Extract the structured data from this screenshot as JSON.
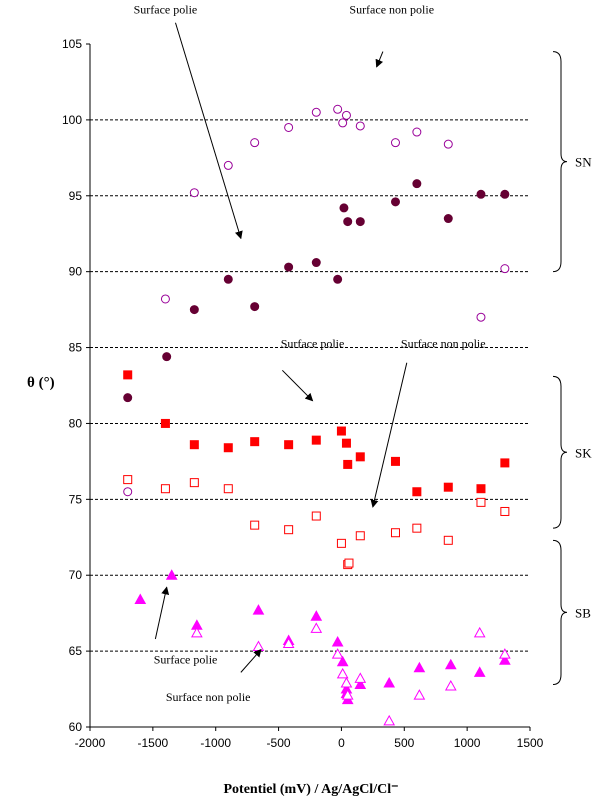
{
  "chart_data": {
    "type": "scatter",
    "xlabel": "Potentiel (mV) / Ag/AgCl/Cl⁻",
    "ylabel": "θ (°)",
    "xlim": [
      -2000,
      1500
    ],
    "ylim": [
      60,
      105
    ],
    "x_ticks": [
      "-2000",
      "-1500",
      "-1000",
      "-500",
      "0",
      "500",
      "1000",
      "1500"
    ],
    "y_ticks": [
      "60",
      "65",
      "70",
      "75",
      "80",
      "85",
      "90",
      "95",
      "100",
      "105"
    ],
    "grid": "horizontal dashed",
    "series": [
      {
        "color": "#990099",
        "marker": "circle-open",
        "points": [
          [
            -1700,
            75.5
          ],
          [
            -1400,
            88.2
          ],
          [
            -1170,
            95.2
          ],
          [
            -900,
            97
          ],
          [
            -690,
            98.5
          ],
          [
            -420,
            99.5
          ],
          [
            -200,
            100.5
          ],
          [
            -30,
            100.7
          ],
          [
            10,
            99.8
          ],
          [
            40,
            100.3
          ],
          [
            150,
            99.6
          ],
          [
            430,
            98.5
          ],
          [
            600,
            99.2
          ],
          [
            850,
            98.4
          ],
          [
            1110,
            87
          ],
          [
            1300,
            90.2
          ]
        ]
      },
      {
        "color": "#660033",
        "marker": "circle-filled",
        "points": [
          [
            -1700,
            81.7
          ],
          [
            -1390,
            84.4
          ],
          [
            -1170,
            87.5
          ],
          [
            -900,
            89.5
          ],
          [
            -690,
            87.7
          ],
          [
            -420,
            90.3
          ],
          [
            -200,
            90.6
          ],
          [
            -30,
            89.5
          ],
          [
            20,
            94.2
          ],
          [
            50,
            93.3
          ],
          [
            150,
            93.3
          ],
          [
            430,
            94.6
          ],
          [
            600,
            95.8
          ],
          [
            850,
            93.5
          ],
          [
            1110,
            95.1
          ],
          [
            1300,
            95.1
          ]
        ]
      },
      {
        "color": "#ff0000",
        "marker": "square-filled",
        "points": [
          [
            -1700,
            83.2
          ],
          [
            -1400,
            80
          ],
          [
            -1170,
            78.6
          ],
          [
            -900,
            78.4
          ],
          [
            -690,
            78.8
          ],
          [
            -420,
            78.6
          ],
          [
            -200,
            78.9
          ],
          [
            0,
            79.5
          ],
          [
            40,
            78.7
          ],
          [
            50,
            77.3
          ],
          [
            150,
            77.8
          ],
          [
            430,
            77.5
          ],
          [
            600,
            75.5
          ],
          [
            850,
            75.8
          ],
          [
            1110,
            75.7
          ],
          [
            1300,
            77.4
          ]
        ]
      },
      {
        "color": "#ff0000",
        "marker": "square-open",
        "points": [
          [
            -1700,
            76.3
          ],
          [
            -1400,
            75.7
          ],
          [
            -1170,
            76.1
          ],
          [
            -900,
            75.7
          ],
          [
            -690,
            73.3
          ],
          [
            -420,
            73
          ],
          [
            -200,
            73.9
          ],
          [
            0,
            72.1
          ],
          [
            50,
            70.7
          ],
          [
            60,
            70.8
          ],
          [
            150,
            72.6
          ],
          [
            430,
            72.8
          ],
          [
            600,
            73.1
          ],
          [
            850,
            72.3
          ],
          [
            1110,
            74.8
          ],
          [
            1300,
            74.2
          ]
        ]
      },
      {
        "color": "#ff00ff",
        "marker": "triangle-filled",
        "points": [
          [
            -1600,
            68.4
          ],
          [
            -1350,
            70
          ],
          [
            -1150,
            66.7
          ],
          [
            -660,
            67.7
          ],
          [
            -420,
            65.7
          ],
          [
            -200,
            67.3
          ],
          [
            -30,
            65.6
          ],
          [
            10,
            64.3
          ],
          [
            40,
            62.5
          ],
          [
            40,
            62.2
          ],
          [
            50,
            61.8
          ],
          [
            150,
            62.8
          ],
          [
            380,
            62.9
          ],
          [
            620,
            63.9
          ],
          [
            870,
            64.1
          ],
          [
            1100,
            63.6
          ],
          [
            1300,
            64.4
          ]
        ]
      },
      {
        "color": "#ff00ff",
        "marker": "triangle-open",
        "points": [
          [
            -1150,
            66.2
          ],
          [
            -660,
            65.3
          ],
          [
            -420,
            65.5
          ],
          [
            -200,
            66.5
          ],
          [
            -30,
            64.8
          ],
          [
            10,
            63.5
          ],
          [
            40,
            62.9
          ],
          [
            50,
            62.1
          ],
          [
            150,
            63.2
          ],
          [
            380,
            60.4
          ],
          [
            620,
            62.1
          ],
          [
            870,
            62.7
          ],
          [
            1100,
            66.2
          ],
          [
            1300,
            64.8
          ]
        ]
      }
    ],
    "annotations": [
      {
        "text": "Surface polie",
        "tx": -1400,
        "ty": 107,
        "ax": -1320,
        "ay": 106.4,
        "hx": -800,
        "hy": 92.2
      },
      {
        "text": "Surface non polie",
        "tx": 400,
        "ty": 107,
        "ax": 330,
        "ay": 104.5,
        "hx": 280,
        "hy": 103.5
      },
      {
        "text": "Surface polie",
        "tx": -230,
        "ty": 85,
        "ax": -470,
        "ay": 83.5,
        "hx": -230,
        "hy": 81.5
      },
      {
        "text": "Surface non polie",
        "tx": 810,
        "ty": 85,
        "ax": 520,
        "ay": 84,
        "hx": 250,
        "hy": 74.5
      },
      {
        "text": "Surface polie",
        "tx": -1240,
        "ty": 64.2,
        "ax": -1480,
        "ay": 65.8,
        "hx": -1390,
        "hy": 69.2
      },
      {
        "text": "Surface non polie",
        "tx": -1060,
        "ty": 61.7,
        "ax": -800,
        "ay": 63.6,
        "hx": -640,
        "hy": 65.1
      }
    ],
    "groups": [
      {
        "label": "SN",
        "y1": 104.5,
        "y2": 90
      },
      {
        "label": "SK",
        "y1": 83.1,
        "y2": 73.1
      },
      {
        "label": "SB",
        "y1": 72.3,
        "y2": 62.8
      }
    ]
  }
}
